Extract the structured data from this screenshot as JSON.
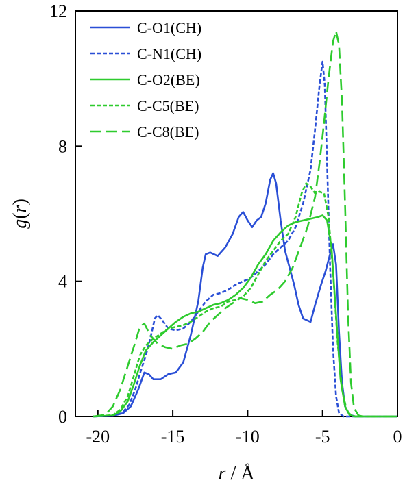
{
  "chart_data": {
    "type": "line",
    "xlabel_italic": "r",
    "xlabel_rest": " / Å",
    "ylabel_italic_g": "g",
    "ylabel_paren_open": "(",
    "ylabel_italic_r": "r",
    "ylabel_paren_close": ")",
    "xlim": [
      -21.5,
      0
    ],
    "ylim": [
      0,
      12
    ],
    "xticks": [
      -20,
      -15,
      -10,
      -5,
      0
    ],
    "yticks": [
      0,
      4,
      8,
      12
    ],
    "legend_position": "top-left",
    "series": [
      {
        "name": "C-O1(CH)",
        "color": "#2a4fd6",
        "dash": "solid",
        "points": [
          [
            -20.3,
            0
          ],
          [
            -19,
            0.02
          ],
          [
            -18.3,
            0.1
          ],
          [
            -17.8,
            0.3
          ],
          [
            -17.3,
            0.8
          ],
          [
            -16.9,
            1.3
          ],
          [
            -16.6,
            1.25
          ],
          [
            -16.3,
            1.1
          ],
          [
            -15.8,
            1.1
          ],
          [
            -15.3,
            1.25
          ],
          [
            -14.8,
            1.3
          ],
          [
            -14.3,
            1.6
          ],
          [
            -13.8,
            2.4
          ],
          [
            -13.3,
            3.4
          ],
          [
            -13,
            4.4
          ],
          [
            -12.8,
            4.8
          ],
          [
            -12.5,
            4.85
          ],
          [
            -12,
            4.75
          ],
          [
            -11.5,
            5.0
          ],
          [
            -11,
            5.4
          ],
          [
            -10.6,
            5.9
          ],
          [
            -10.3,
            6.05
          ],
          [
            -10,
            5.8
          ],
          [
            -9.7,
            5.6
          ],
          [
            -9.4,
            5.8
          ],
          [
            -9.1,
            5.9
          ],
          [
            -8.8,
            6.3
          ],
          [
            -8.5,
            7.0
          ],
          [
            -8.3,
            7.2
          ],
          [
            -8.1,
            6.9
          ],
          [
            -7.8,
            5.8
          ],
          [
            -7.5,
            4.9
          ],
          [
            -7.2,
            4.4
          ],
          [
            -6.9,
            3.9
          ],
          [
            -6.6,
            3.3
          ],
          [
            -6.3,
            2.9
          ],
          [
            -5.8,
            2.8
          ],
          [
            -5.5,
            3.3
          ],
          [
            -5.1,
            3.9
          ],
          [
            -4.8,
            4.3
          ],
          [
            -4.5,
            4.8
          ],
          [
            -4.3,
            5.1
          ],
          [
            -4.1,
            4.5
          ],
          [
            -3.9,
            2.5
          ],
          [
            -3.7,
            1.0
          ],
          [
            -3.5,
            0.3
          ],
          [
            -3.2,
            0.05
          ],
          [
            -2.8,
            0
          ],
          [
            0,
            0
          ]
        ]
      },
      {
        "name": "C-N1(CH)",
        "color": "#2a4fd6",
        "dash": "short",
        "points": [
          [
            -20.3,
            0
          ],
          [
            -19,
            0.02
          ],
          [
            -18.4,
            0.1
          ],
          [
            -17.9,
            0.35
          ],
          [
            -17.5,
            0.8
          ],
          [
            -17.1,
            1.4
          ],
          [
            -16.8,
            1.8
          ],
          [
            -16.5,
            2.3
          ],
          [
            -16.2,
            2.9
          ],
          [
            -16,
            3.0
          ],
          [
            -15.7,
            2.85
          ],
          [
            -15.3,
            2.6
          ],
          [
            -14.8,
            2.55
          ],
          [
            -14.3,
            2.6
          ],
          [
            -13.8,
            2.8
          ],
          [
            -13.3,
            3.1
          ],
          [
            -12.8,
            3.4
          ],
          [
            -12.3,
            3.6
          ],
          [
            -11.8,
            3.65
          ],
          [
            -11.3,
            3.75
          ],
          [
            -10.8,
            3.9
          ],
          [
            -10.3,
            4.0
          ],
          [
            -9.8,
            4.1
          ],
          [
            -9.3,
            4.3
          ],
          [
            -8.8,
            4.5
          ],
          [
            -8.3,
            4.8
          ],
          [
            -7.8,
            5.0
          ],
          [
            -7.3,
            5.2
          ],
          [
            -6.8,
            5.6
          ],
          [
            -6.3,
            6.3
          ],
          [
            -5.8,
            7.3
          ],
          [
            -5.5,
            8.5
          ],
          [
            -5.2,
            9.8
          ],
          [
            -5,
            10.5
          ],
          [
            -4.85,
            9.8
          ],
          [
            -4.7,
            7.5
          ],
          [
            -4.5,
            4.5
          ],
          [
            -4.3,
            2.0
          ],
          [
            -4.1,
            0.6
          ],
          [
            -3.9,
            0.1
          ],
          [
            -3.6,
            0
          ],
          [
            0,
            0
          ]
        ]
      },
      {
        "name": "C-O2(BE)",
        "color": "#2ecb2e",
        "dash": "solid",
        "points": [
          [
            -20.3,
            0
          ],
          [
            -19,
            0.03
          ],
          [
            -18.5,
            0.15
          ],
          [
            -18,
            0.45
          ],
          [
            -17.6,
            0.95
          ],
          [
            -17.2,
            1.5
          ],
          [
            -16.8,
            1.95
          ],
          [
            -16.3,
            2.2
          ],
          [
            -15.8,
            2.4
          ],
          [
            -15.3,
            2.6
          ],
          [
            -14.8,
            2.8
          ],
          [
            -14.3,
            2.95
          ],
          [
            -13.8,
            3.05
          ],
          [
            -13.3,
            3.1
          ],
          [
            -12.8,
            3.2
          ],
          [
            -12.3,
            3.3
          ],
          [
            -11.8,
            3.35
          ],
          [
            -11.3,
            3.45
          ],
          [
            -10.8,
            3.6
          ],
          [
            -10.3,
            3.8
          ],
          [
            -9.8,
            4.1
          ],
          [
            -9.3,
            4.5
          ],
          [
            -8.8,
            4.8
          ],
          [
            -8.3,
            5.2
          ],
          [
            -7.8,
            5.45
          ],
          [
            -7.3,
            5.65
          ],
          [
            -6.8,
            5.75
          ],
          [
            -6.3,
            5.8
          ],
          [
            -5.8,
            5.85
          ],
          [
            -5.3,
            5.9
          ],
          [
            -5,
            5.95
          ],
          [
            -4.7,
            5.8
          ],
          [
            -4.4,
            5.0
          ],
          [
            -4.1,
            3.0
          ],
          [
            -3.8,
            1.1
          ],
          [
            -3.5,
            0.3
          ],
          [
            -3.2,
            0.05
          ],
          [
            -2.9,
            0
          ],
          [
            0,
            0
          ]
        ]
      },
      {
        "name": "C-C5(BE)",
        "color": "#2ecb2e",
        "dash": "short",
        "points": [
          [
            -20.3,
            0
          ],
          [
            -19,
            0.04
          ],
          [
            -18.5,
            0.2
          ],
          [
            -18,
            0.6
          ],
          [
            -17.6,
            1.2
          ],
          [
            -17.2,
            1.8
          ],
          [
            -16.8,
            2.1
          ],
          [
            -16.3,
            2.3
          ],
          [
            -15.8,
            2.45
          ],
          [
            -15.3,
            2.6
          ],
          [
            -14.8,
            2.65
          ],
          [
            -14.3,
            2.7
          ],
          [
            -13.8,
            2.8
          ],
          [
            -13.3,
            2.95
          ],
          [
            -12.8,
            3.1
          ],
          [
            -12.3,
            3.2
          ],
          [
            -11.8,
            3.25
          ],
          [
            -11.3,
            3.4
          ],
          [
            -10.8,
            3.45
          ],
          [
            -10.3,
            3.55
          ],
          [
            -9.8,
            3.8
          ],
          [
            -9.3,
            4.2
          ],
          [
            -8.8,
            4.6
          ],
          [
            -8.3,
            4.9
          ],
          [
            -7.8,
            5.2
          ],
          [
            -7.3,
            5.4
          ],
          [
            -6.8,
            5.9
          ],
          [
            -6.4,
            6.6
          ],
          [
            -6.1,
            6.9
          ],
          [
            -5.8,
            6.8
          ],
          [
            -5.5,
            6.6
          ],
          [
            -5.2,
            6.65
          ],
          [
            -4.9,
            6.6
          ],
          [
            -4.6,
            5.9
          ],
          [
            -4.3,
            4.3
          ],
          [
            -4.0,
            2.2
          ],
          [
            -3.7,
            0.8
          ],
          [
            -3.4,
            0.2
          ],
          [
            -3.1,
            0.03
          ],
          [
            -2.8,
            0
          ],
          [
            0,
            0
          ]
        ]
      },
      {
        "name": "C-C8(BE)",
        "color": "#2ecb2e",
        "dash": "long",
        "points": [
          [
            -20.3,
            0
          ],
          [
            -19.5,
            0.05
          ],
          [
            -19,
            0.3
          ],
          [
            -18.5,
            0.8
          ],
          [
            -18,
            1.5
          ],
          [
            -17.5,
            2.2
          ],
          [
            -17.2,
            2.65
          ],
          [
            -16.9,
            2.75
          ],
          [
            -16.5,
            2.4
          ],
          [
            -16,
            2.15
          ],
          [
            -15.5,
            2.05
          ],
          [
            -15,
            2.0
          ],
          [
            -14.5,
            2.1
          ],
          [
            -14,
            2.15
          ],
          [
            -13.5,
            2.3
          ],
          [
            -13,
            2.5
          ],
          [
            -12.5,
            2.8
          ],
          [
            -12,
            3.0
          ],
          [
            -11.5,
            3.2
          ],
          [
            -11,
            3.35
          ],
          [
            -10.5,
            3.5
          ],
          [
            -10,
            3.45
          ],
          [
            -9.5,
            3.35
          ],
          [
            -9,
            3.4
          ],
          [
            -8.5,
            3.6
          ],
          [
            -8,
            3.75
          ],
          [
            -7.5,
            4.0
          ],
          [
            -7,
            4.4
          ],
          [
            -6.5,
            5.0
          ],
          [
            -6,
            5.6
          ],
          [
            -5.5,
            6.5
          ],
          [
            -5.2,
            7.5
          ],
          [
            -4.9,
            8.7
          ],
          [
            -4.6,
            10.0
          ],
          [
            -4.3,
            11.1
          ],
          [
            -4.1,
            11.4
          ],
          [
            -3.9,
            11.0
          ],
          [
            -3.7,
            9.3
          ],
          [
            -3.5,
            6.3
          ],
          [
            -3.3,
            3.0
          ],
          [
            -3.1,
            1.0
          ],
          [
            -2.9,
            0.25
          ],
          [
            -2.6,
            0.03
          ],
          [
            -2.3,
            0
          ],
          [
            0,
            0
          ]
        ]
      }
    ]
  }
}
